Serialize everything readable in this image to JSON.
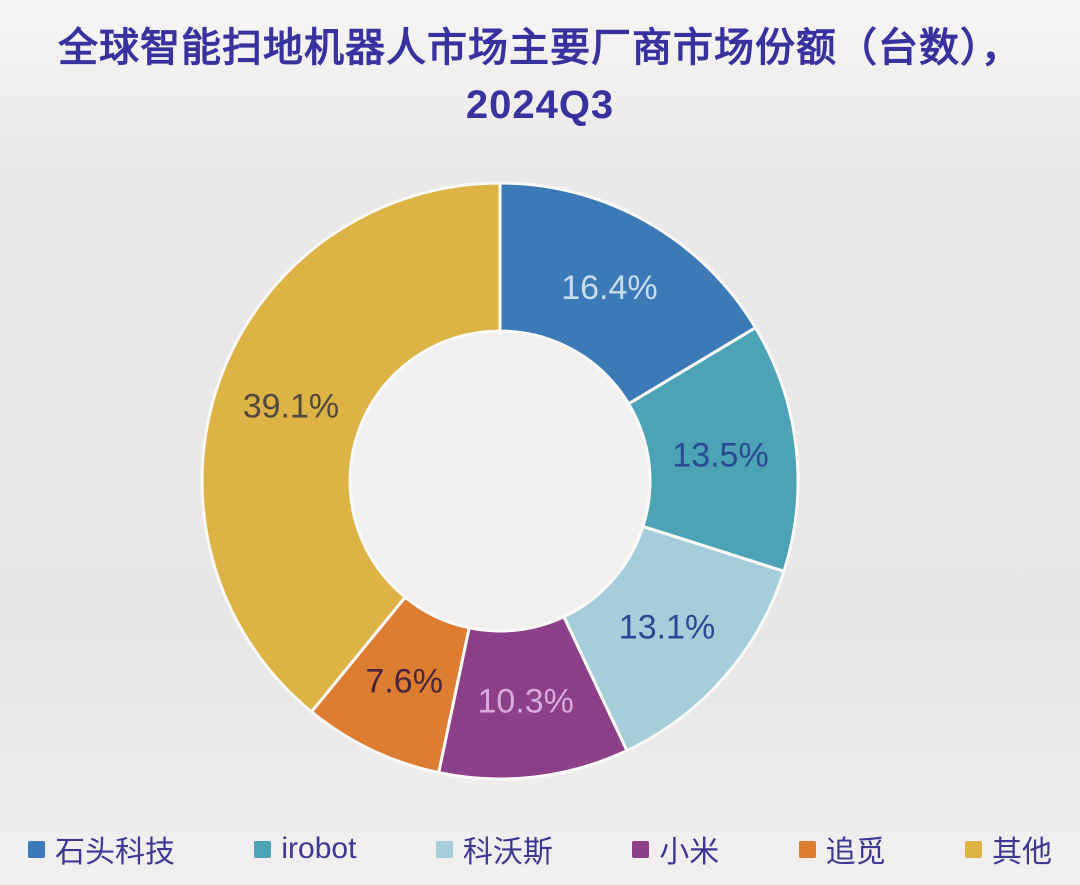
{
  "title": {
    "line1": "全球智能扫地机器人市场主要厂商市场份额（台数），",
    "line2": "2024Q3",
    "color": "#38329E"
  },
  "chart_data": {
    "type": "pie",
    "subtype": "donut",
    "title": "全球智能扫地机器人市场主要厂商市场份额（台数），2024Q3",
    "unit": "%",
    "start_angle_deg": 0,
    "direction": "clockwise",
    "legend_position": "bottom",
    "legend_text_color": "#3D3894",
    "categories": [
      "石头科技",
      "irobot",
      "科沃斯",
      "小米",
      "追觅",
      "其他"
    ],
    "values": [
      16.4,
      13.5,
      13.1,
      10.3,
      7.6,
      39.1
    ],
    "slices": [
      {
        "label": "石头科技",
        "value": 16.4,
        "label_text": "16.4%",
        "color": "#3B7AB6",
        "label_color": "#C8DEF0"
      },
      {
        "label": "irobot",
        "value": 13.5,
        "label_text": "13.5%",
        "color": "#4BA3B5",
        "label_color": "#2A4A94"
      },
      {
        "label": "科沃斯",
        "value": 13.1,
        "label_text": "13.1%",
        "color": "#A5CDDA",
        "label_color": "#2B4A94"
      },
      {
        "label": "小米",
        "value": 10.3,
        "label_text": "10.3%",
        "color": "#8B4089",
        "label_color": "#D9A8DC"
      },
      {
        "label": "追觅",
        "value": 7.6,
        "label_text": "7.6%",
        "color": "#DC7D32",
        "label_color": "#49253C"
      },
      {
        "label": "其他",
        "value": 39.1,
        "label_text": "39.1%",
        "color": "#DCB344",
        "label_color": "#534A3D"
      }
    ],
    "hole_color": "#F1F0EE",
    "slice_border_color": "#FAF9F7"
  }
}
